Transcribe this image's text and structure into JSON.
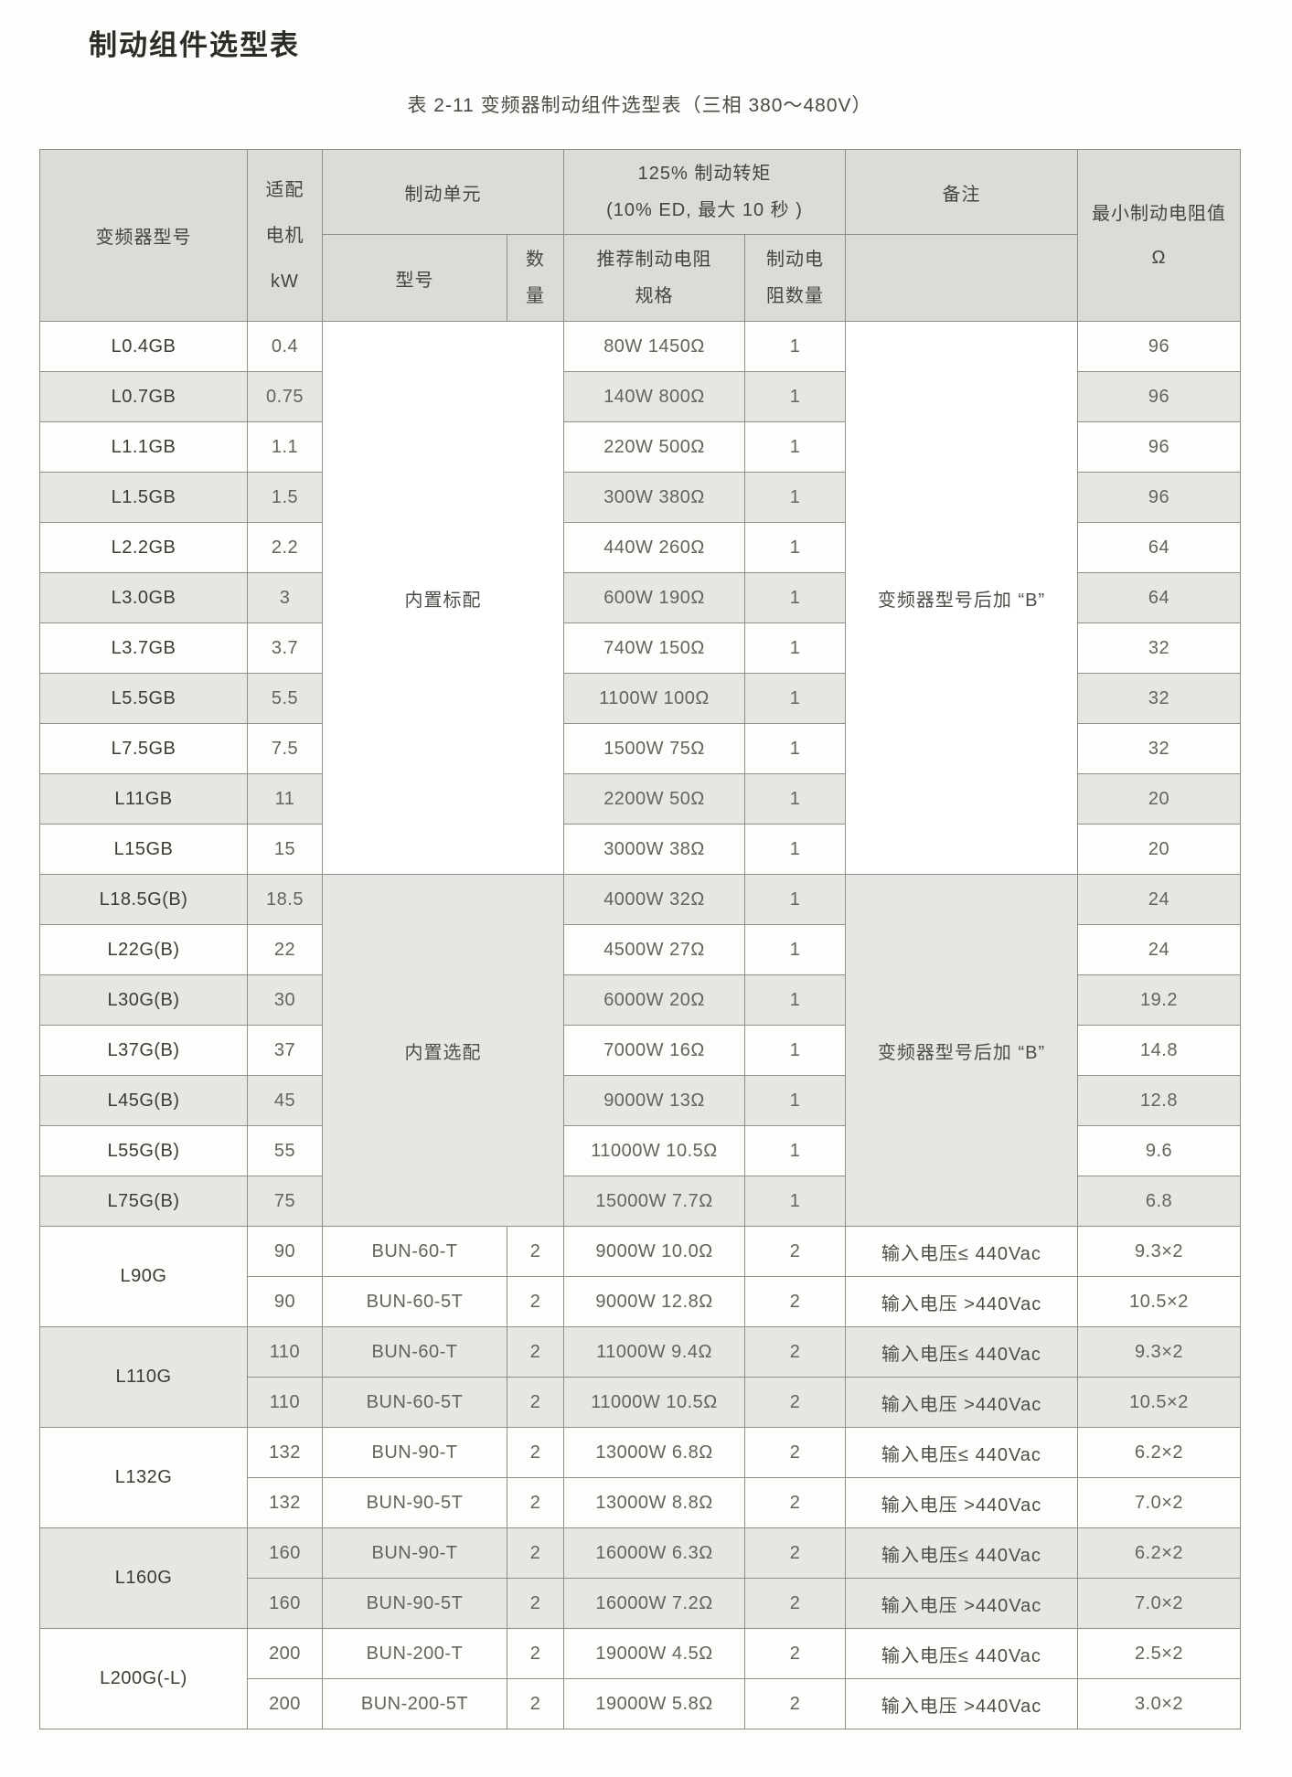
{
  "page": {
    "title": "制动组件选型表",
    "subtitle": "表 2-11 变频器制动组件选型表（三相 380～480V）"
  },
  "table": {
    "header": {
      "col_inverter_model": "变频器型号",
      "col_motor_kw_lines": [
        "适配",
        "电机",
        "kW"
      ],
      "col_braking_unit": "制动单元",
      "col_braking_unit_model": "型号",
      "col_braking_unit_qty_lines": [
        "数",
        "量"
      ],
      "col_torque_lines": [
        "125% 制动转矩",
        "(10% ED, 最大 10 秒 )"
      ],
      "col_resistor_spec_lines": [
        "推荐制动电阻",
        "规格"
      ],
      "col_resistor_qty_lines": [
        "制动电",
        "阻数量"
      ],
      "col_remark": "备注",
      "col_min_resistance_lines": [
        "最小制动电阻值",
        "Ω"
      ]
    },
    "sections": [
      {
        "unit_label": "内置标配",
        "remark": "变频器型号后加 “B”",
        "rows": [
          {
            "model": "L0.4GB",
            "kw": "0.4",
            "spec": "80W 1450Ω",
            "qty": "1",
            "min": "96"
          },
          {
            "model": "L0.7GB",
            "kw": "0.75",
            "spec": "140W 800Ω",
            "qty": "1",
            "min": "96"
          },
          {
            "model": "L1.1GB",
            "kw": "1.1",
            "spec": "220W 500Ω",
            "qty": "1",
            "min": "96"
          },
          {
            "model": "L1.5GB",
            "kw": "1.5",
            "spec": "300W 380Ω",
            "qty": "1",
            "min": "96"
          },
          {
            "model": "L2.2GB",
            "kw": "2.2",
            "spec": "440W 260Ω",
            "qty": "1",
            "min": "64"
          },
          {
            "model": "L3.0GB",
            "kw": "3",
            "spec": "600W 190Ω",
            "qty": "1",
            "min": "64"
          },
          {
            "model": "L3.7GB",
            "kw": "3.7",
            "spec": "740W 150Ω",
            "qty": "1",
            "min": "32"
          },
          {
            "model": "L5.5GB",
            "kw": "5.5",
            "spec": "1100W 100Ω",
            "qty": "1",
            "min": "32"
          },
          {
            "model": "L7.5GB",
            "kw": "7.5",
            "spec": "1500W 75Ω",
            "qty": "1",
            "min": "32"
          },
          {
            "model": "L11GB",
            "kw": "11",
            "spec": "2200W 50Ω",
            "qty": "1",
            "min": "20"
          },
          {
            "model": "L15GB",
            "kw": "15",
            "spec": "3000W 38Ω",
            "qty": "1",
            "min": "20"
          }
        ]
      },
      {
        "unit_label": "内置选配",
        "remark": "变频器型号后加 “B”",
        "rows": [
          {
            "model": "L18.5G(B)",
            "kw": "18.5",
            "spec": "4000W 32Ω",
            "qty": "1",
            "min": "24"
          },
          {
            "model": "L22G(B)",
            "kw": "22",
            "spec": "4500W 27Ω",
            "qty": "1",
            "min": "24"
          },
          {
            "model": "L30G(B)",
            "kw": "30",
            "spec": "6000W 20Ω",
            "qty": "1",
            "min": "19.2"
          },
          {
            "model": "L37G(B)",
            "kw": "37",
            "spec": "7000W 16Ω",
            "qty": "1",
            "min": "14.8"
          },
          {
            "model": "L45G(B)",
            "kw": "45",
            "spec": "9000W 13Ω",
            "qty": "1",
            "min": "12.8"
          },
          {
            "model": "L55G(B)",
            "kw": "55",
            "spec": "11000W 10.5Ω",
            "qty": "1",
            "min": "9.6"
          },
          {
            "model": "L75G(B)",
            "kw": "75",
            "spec": "15000W 7.7Ω",
            "qty": "1",
            "min": "6.8"
          }
        ]
      },
      {
        "groups": [
          {
            "model": "L90G",
            "rows": [
              {
                "kw": "90",
                "unit_model": "BUN-60-T",
                "unit_qty": "2",
                "spec": "9000W 10.0Ω",
                "qty": "2",
                "remark": "输入电压≤ 440Vac",
                "min": "9.3×2"
              },
              {
                "kw": "90",
                "unit_model": "BUN-60-5T",
                "unit_qty": "2",
                "spec": "9000W 12.8Ω",
                "qty": "2",
                "remark": "输入电压 >440Vac",
                "min": "10.5×2"
              }
            ]
          },
          {
            "model": "L110G",
            "rows": [
              {
                "kw": "110",
                "unit_model": "BUN-60-T",
                "unit_qty": "2",
                "spec": "11000W 9.4Ω",
                "qty": "2",
                "remark": "输入电压≤ 440Vac",
                "min": "9.3×2"
              },
              {
                "kw": "110",
                "unit_model": "BUN-60-5T",
                "unit_qty": "2",
                "spec": "11000W 10.5Ω",
                "qty": "2",
                "remark": "输入电压 >440Vac",
                "min": "10.5×2"
              }
            ]
          },
          {
            "model": "L132G",
            "rows": [
              {
                "kw": "132",
                "unit_model": "BUN-90-T",
                "unit_qty": "2",
                "spec": "13000W 6.8Ω",
                "qty": "2",
                "remark": "输入电压≤ 440Vac",
                "min": "6.2×2"
              },
              {
                "kw": "132",
                "unit_model": "BUN-90-5T",
                "unit_qty": "2",
                "spec": "13000W 8.8Ω",
                "qty": "2",
                "remark": "输入电压 >440Vac",
                "min": "7.0×2"
              }
            ]
          },
          {
            "model": "L160G",
            "rows": [
              {
                "kw": "160",
                "unit_model": "BUN-90-T",
                "unit_qty": "2",
                "spec": "16000W 6.3Ω",
                "qty": "2",
                "remark": "输入电压≤ 440Vac",
                "min": "6.2×2"
              },
              {
                "kw": "160",
                "unit_model": "BUN-90-5T",
                "unit_qty": "2",
                "spec": "16000W 7.2Ω",
                "qty": "2",
                "remark": "输入电压 >440Vac",
                "min": "7.0×2"
              }
            ]
          },
          {
            "model": "L200G(-L)",
            "rows": [
              {
                "kw": "200",
                "unit_model": "BUN-200-T",
                "unit_qty": "2",
                "spec": "19000W 4.5Ω",
                "qty": "2",
                "remark": "输入电压≤ 440Vac",
                "min": "2.5×2"
              },
              {
                "kw": "200",
                "unit_model": "BUN-200-5T",
                "unit_qty": "2",
                "spec": "19000W 5.8Ω",
                "qty": "2",
                "remark": "输入电压 >440Vac",
                "min": "3.0×2"
              }
            ]
          }
        ]
      }
    ]
  }
}
